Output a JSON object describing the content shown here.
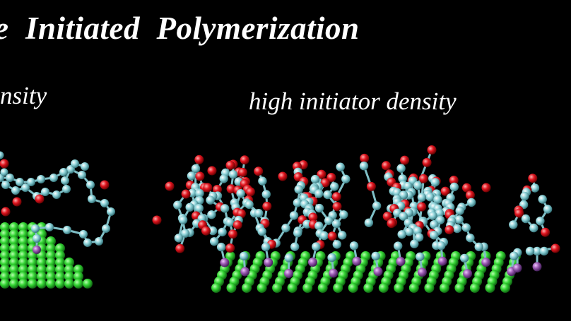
{
  "title": "e  Initiated  Polymerization",
  "panels": [
    {
      "label": "nsity"
    },
    {
      "label": "high initiator density"
    }
  ],
  "colors": {
    "background": "#000000",
    "substrate": "#33d433",
    "carbon": "#8ed3d9",
    "oxygen": "#e0141e",
    "anchor": "#9b5bb2",
    "bond": "#7fbfc6",
    "text": "#ffffff"
  }
}
